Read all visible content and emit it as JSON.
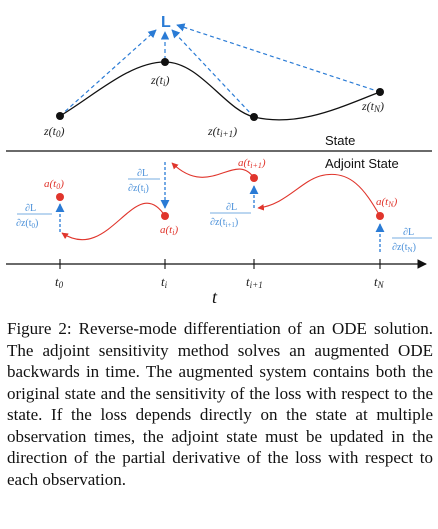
{
  "figure": {
    "loss_label": "L",
    "state_section_label": "State",
    "adjoint_section_label": "Adjoint State",
    "state_points": [
      "z(t0)",
      "z(ti)",
      "z(ti+1)",
      "z(tN)"
    ],
    "adjoint_points": [
      "a(t0)",
      "a(ti)",
      "a(ti+1)",
      "a(tN)"
    ],
    "gradients": [
      "∂L/∂z(t0)",
      "∂L/∂z(ti)",
      "∂L/∂z(ti+1)",
      "∂L/∂z(tN)"
    ],
    "time_ticks": [
      "t0",
      "ti",
      "ti+1",
      "tN"
    ],
    "time_axis_label": "t",
    "colors": {
      "state": "#111111",
      "adjoint": "#e0352c",
      "gradient": "#2a7bd5"
    }
  },
  "caption": "Figure 2: Reverse-mode differentiation of an ODE solution. The adjoint sensitivity method solves an augmented ODE backwards in time. The augmented system contains both the original state and the sensitivity of the loss with respect to the state. If the loss depends directly on the state at multiple observation times, the adjoint state must be updated in the direction of the partial derivative of the loss with respect to each observation."
}
